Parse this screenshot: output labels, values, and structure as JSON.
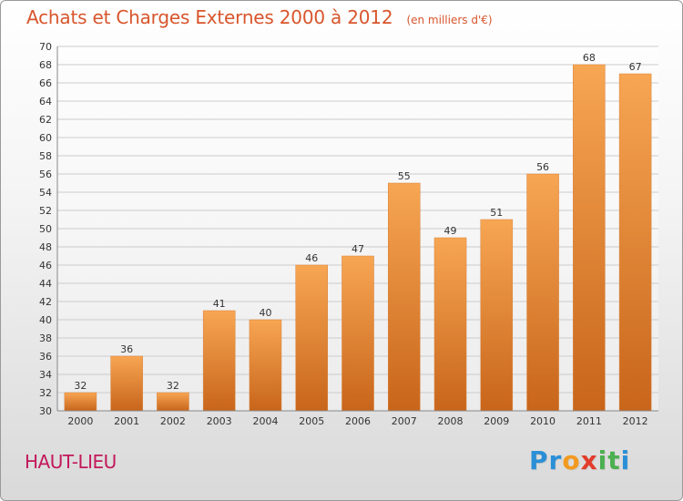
{
  "header": {
    "title": "Achats et Charges Externes 2000 à 2012",
    "unit": "(en milliers d'€)"
  },
  "place": {
    "name": "HAUT-LIEU"
  },
  "brand": {
    "letters": [
      "P",
      "r",
      "o",
      "x",
      "i",
      "t",
      "i"
    ],
    "colors": [
      "#2a8fd6",
      "#2a8fd6",
      "#f29a1f",
      "#e23c2b",
      "#4caf50",
      "#4caf50",
      "#2a8fd6"
    ]
  },
  "colors": {
    "bar_top": "#f7a653",
    "bar_bottom": "#c8651b",
    "title": "#d8552c",
    "grid": "#cccccc"
  },
  "chart_data": {
    "type": "bar",
    "categories": [
      "2000",
      "2001",
      "2002",
      "2003",
      "2004",
      "2005",
      "2006",
      "2007",
      "2008",
      "2009",
      "2010",
      "2011",
      "2012"
    ],
    "values": [
      32,
      36,
      32,
      41,
      40,
      46,
      47,
      55,
      49,
      51,
      56,
      68,
      67
    ],
    "ylim": [
      30,
      70
    ],
    "yticks": [
      30,
      32,
      34,
      36,
      38,
      40,
      42,
      44,
      46,
      48,
      50,
      52,
      54,
      56,
      58,
      60,
      62,
      64,
      66,
      68,
      70
    ],
    "title": "Achats et Charges Externes 2000 à 2012",
    "xlabel": "",
    "ylabel": "",
    "grid": true,
    "data_labels": true
  }
}
